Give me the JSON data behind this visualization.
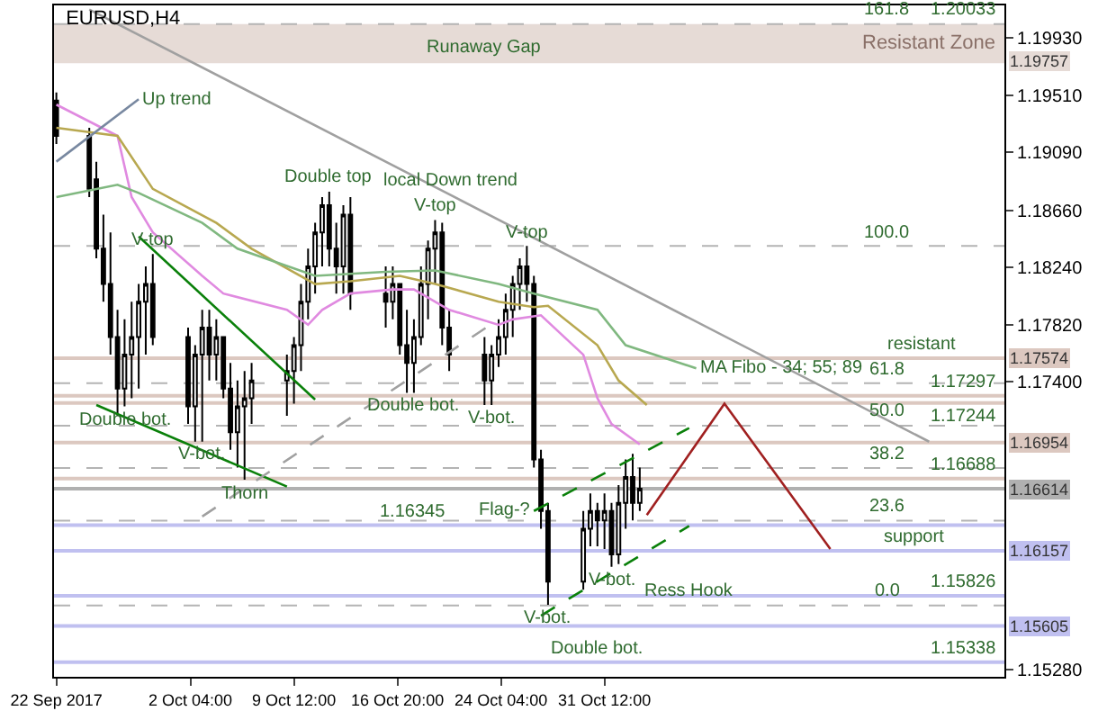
{
  "chart_data": {
    "type": "candlestick",
    "title": "EURUSD,H4",
    "color": "#000000",
    "x": [
      "2017-09-22T16:00",
      "2017-09-25T00:00",
      "2017-09-25T12:00",
      "2017-09-26T00:00",
      "2017-09-26T12:00",
      "2017-09-27T00:00",
      "2017-09-27T12:00",
      "2017-09-28T00:00",
      "2017-09-28T12:00",
      "2017-09-29T00:00",
      "2017-09-29T12:00",
      "2017-10-02T00:00",
      "2017-10-02T12:00",
      "2017-10-03T00:00",
      "2017-10-03T12:00",
      "2017-10-04T00:00",
      "2017-10-04T12:00",
      "2017-10-05T00:00",
      "2017-10-05T12:00",
      "2017-10-06T00:00",
      "2017-10-06T12:00",
      "2017-10-09T00:00",
      "2017-10-09T12:00",
      "2017-10-10T00:00",
      "2017-10-10T12:00",
      "2017-10-11T00:00",
      "2017-10-11T12:00",
      "2017-10-12T00:00",
      "2017-10-12T12:00",
      "2017-10-13T00:00",
      "2017-10-13T12:00",
      "2017-10-16T00:00",
      "2017-10-16T12:00",
      "2017-10-17T00:00",
      "2017-10-17T12:00",
      "2017-10-18T00:00",
      "2017-10-18T12:00",
      "2017-10-19T00:00",
      "2017-10-19T12:00",
      "2017-10-20T00:00",
      "2017-10-20T12:00",
      "2017-10-23T00:00",
      "2017-10-23T12:00",
      "2017-10-24T00:00",
      "2017-10-24T12:00",
      "2017-10-25T00:00",
      "2017-10-25T12:00",
      "2017-10-26T00:00",
      "2017-10-26T12:00",
      "2017-10-27T00:00",
      "2017-10-27T12:00",
      "2017-10-30T00:00",
      "2017-10-30T12:00",
      "2017-10-31T00:00",
      "2017-10-31T12:00",
      "2017-11-01T00:00",
      "2017-11-01T12:00",
      "2017-11-02T00:00",
      "2017-11-02T12:00",
      "2017-11-03T00:00"
    ],
    "ohlc": [
      [
        1.1947,
        1.1953,
        1.1915,
        1.1921
      ],
      [
        1.1921,
        1.1927,
        1.1876,
        1.1882
      ],
      [
        1.1889,
        1.1902,
        1.1831,
        1.1838
      ],
      [
        1.1838,
        1.1863,
        1.1799,
        1.1812
      ],
      [
        1.1812,
        1.185,
        1.176,
        1.1773
      ],
      [
        1.1773,
        1.1793,
        1.1715,
        1.1735
      ],
      [
        1.1735,
        1.1786,
        1.1722,
        1.176
      ],
      [
        1.176,
        1.1799,
        1.1728,
        1.1773
      ],
      [
        1.1773,
        1.1812,
        1.1735,
        1.1799
      ],
      [
        1.1799,
        1.1825,
        1.176,
        1.1812
      ],
      [
        1.1812,
        1.1834,
        1.1767,
        1.1773
      ],
      [
        1.1773,
        1.178,
        1.1709,
        1.1722
      ],
      [
        1.1722,
        1.1767,
        1.1696,
        1.176
      ],
      [
        1.176,
        1.1793,
        1.1696,
        1.178
      ],
      [
        1.178,
        1.1793,
        1.1741,
        1.176
      ],
      [
        1.176,
        1.1786,
        1.1741,
        1.1773
      ],
      [
        1.1773,
        1.1773,
        1.1728,
        1.1735
      ],
      [
        1.1735,
        1.1754,
        1.169,
        1.1703
      ],
      [
        1.1703,
        1.1741,
        1.1677,
        1.1722
      ],
      [
        1.1722,
        1.1748,
        1.1668,
        1.1728
      ],
      [
        1.1728,
        1.1754,
        1.1709,
        1.1741
      ],
      [
        1.1741,
        1.176,
        1.1715,
        1.1748
      ],
      [
        1.1748,
        1.1773,
        1.1724,
        1.1767
      ],
      [
        1.1767,
        1.1812,
        1.1748,
        1.1799
      ],
      [
        1.1799,
        1.1838,
        1.1786,
        1.1825
      ],
      [
        1.1825,
        1.1857,
        1.1805,
        1.185
      ],
      [
        1.185,
        1.1876,
        1.1825,
        1.187
      ],
      [
        1.187,
        1.188,
        1.1825,
        1.1838
      ],
      [
        1.1838,
        1.1857,
        1.1805,
        1.1825
      ],
      [
        1.1825,
        1.187,
        1.1805,
        1.1863
      ],
      [
        1.1863,
        1.1876,
        1.1793,
        1.1805
      ],
      [
        1.1805,
        1.1825,
        1.178,
        1.1799
      ],
      [
        1.1799,
        1.1825,
        1.1786,
        1.1812
      ],
      [
        1.1812,
        1.1812,
        1.176,
        1.1767
      ],
      [
        1.1767,
        1.1793,
        1.1732,
        1.1754
      ],
      [
        1.1754,
        1.1786,
        1.1732,
        1.1773
      ],
      [
        1.1773,
        1.1825,
        1.1767,
        1.1812
      ],
      [
        1.1812,
        1.1844,
        1.1786,
        1.1838
      ],
      [
        1.1838,
        1.1859,
        1.1812,
        1.185
      ],
      [
        1.185,
        1.1857,
        1.1767,
        1.178
      ],
      [
        1.178,
        1.1793,
        1.1748,
        1.176
      ],
      [
        1.176,
        1.1773,
        1.1723,
        1.1741
      ],
      [
        1.1741,
        1.1767,
        1.1723,
        1.176
      ],
      [
        1.176,
        1.1786,
        1.1751,
        1.1773
      ],
      [
        1.1773,
        1.1805,
        1.176,
        1.1793
      ],
      [
        1.1793,
        1.1818,
        1.1773,
        1.1812
      ],
      [
        1.1812,
        1.1831,
        1.1793,
        1.1825
      ],
      [
        1.1825,
        1.184,
        1.1799,
        1.1812
      ],
      [
        1.1812,
        1.1818,
        1.1677,
        1.1683
      ],
      [
        1.1683,
        1.169,
        1.1632,
        1.1645
      ],
      [
        1.1645,
        1.1651,
        1.1576,
        1.1593
      ],
      [
        1.1593,
        1.1645,
        1.1587,
        1.1632
      ],
      [
        1.1632,
        1.1658,
        1.1619,
        1.1645
      ],
      [
        1.1645,
        1.1651,
        1.1619,
        1.1638
      ],
      [
        1.1638,
        1.1658,
        1.1617,
        1.1645
      ],
      [
        1.1645,
        1.1651,
        1.1604,
        1.1613
      ],
      [
        1.1613,
        1.1664,
        1.1606,
        1.1651
      ],
      [
        1.1651,
        1.1683,
        1.1632,
        1.167
      ],
      [
        1.167,
        1.1687,
        1.1638,
        1.1651
      ],
      [
        1.1651,
        1.1677,
        1.1645,
        1.16614
      ]
    ],
    "series": [
      {
        "type": "line",
        "color": "#e08ae0",
        "x": [
          "2017-09-22T16:00",
          "2017-09-27T00:00",
          "2017-09-28T00:00",
          "2017-09-29T12:00",
          "2017-10-03T00:00",
          "2017-10-04T12:00",
          "2017-10-09T00:00",
          "2017-10-10T12:00",
          "2017-10-11T12:00",
          "2017-10-13T12:00",
          "2017-10-16T12:00",
          "2017-10-18T00:00",
          "2017-10-20T12:00",
          "2017-10-24T00:00",
          "2017-10-25T00:00",
          "2017-10-27T00:00",
          "2017-10-30T00:00",
          "2017-10-31T00:00",
          "2017-11-01T00:00",
          "2017-11-03T00:00"
        ],
        "values": [
          1.1944,
          1.1921,
          1.1876,
          1.185,
          1.1818,
          1.1805,
          1.1793,
          1.1782,
          1.1793,
          1.1805,
          1.1808,
          1.1808,
          1.1793,
          1.1782,
          1.1786,
          1.1789,
          1.176,
          1.1728,
          1.1709,
          1.1694
        ]
      },
      {
        "type": "line",
        "color": "#b8a850",
        "x": [
          "2017-09-22T16:00",
          "2017-09-27T00:00",
          "2017-09-29T12:00",
          "2017-10-04T00:00",
          "2017-10-06T12:00",
          "2017-10-11T00:00",
          "2017-10-13T12:00",
          "2017-10-17T00:00",
          "2017-10-19T12:00",
          "2017-10-24T00:00",
          "2017-10-26T12:00",
          "2017-10-27T12:00",
          "2017-10-31T00:00",
          "2017-11-01T12:00",
          "2017-11-03T12:00"
        ],
        "values": [
          1.1927,
          1.1921,
          1.1882,
          1.1857,
          1.1838,
          1.1812,
          1.1814,
          1.1818,
          1.1812,
          1.1799,
          1.1795,
          1.1796,
          1.1767,
          1.1741,
          1.1723
        ]
      },
      {
        "type": "line",
        "color": "#80b880",
        "x": [
          "2017-09-22T16:00",
          "2017-09-27T00:00",
          "2017-09-28T12:00",
          "2017-10-03T00:00",
          "2017-10-05T12:00",
          "2017-10-11T00:00",
          "2017-10-16T00:00",
          "2017-10-19T12:00",
          "2017-10-24T00:00",
          "2017-10-26T12:00",
          "2017-10-31T00:00",
          "2017-11-02T00:00",
          "2017-11-07T00:00"
        ],
        "values": [
          1.1876,
          1.1885,
          1.1879,
          1.1857,
          1.1838,
          1.1818,
          1.1821,
          1.1822,
          1.1812,
          1.1805,
          1.1793,
          1.1767,
          1.175
        ]
      },
      {
        "type": "line",
        "color": "#a0a0a0",
        "x": [
          "2017-09-25T00:00",
          "2017-10-20T12:00",
          "2017-11-23T12:00"
        ],
        "values": [
          1.2014,
          1.1878,
          1.1696
        ]
      },
      {
        "type": "line",
        "color": "#7888a0",
        "x": [
          "2017-09-22T16:00",
          "2017-09-28T12:00"
        ],
        "values": [
          1.1902,
          1.1948
        ]
      },
      {
        "type": "line",
        "color": "#0a800a",
        "x": [
          "2017-09-28T12:00",
          "2017-10-11T00:00"
        ],
        "values": [
          1.1847,
          1.1727
        ]
      },
      {
        "type": "line",
        "color": "#0a800a",
        "x": [
          "2017-09-25T12:00",
          "2017-10-09T00:00"
        ],
        "values": [
          1.1723,
          1.1663
        ]
      },
      {
        "type": "line",
        "color": "#a02020",
        "x": [
          "2017-11-03T12:00",
          "2017-11-09T00:00",
          "2017-11-16T12:00"
        ],
        "values": [
          1.1642,
          1.1724,
          1.1617
        ]
      },
      {
        "type": "line",
        "color": "#0a800a",
        "line_style": "dashed",
        "x": [
          "2017-10-26T12:00",
          "2017-11-06T12:00"
        ],
        "values": [
          1.1645,
          1.1706
        ]
      },
      {
        "type": "line",
        "color": "#0a800a",
        "line_style": "dashed",
        "x": [
          "2017-10-27T00:00",
          "2017-11-06T12:00"
        ],
        "values": [
          1.1568,
          1.1634
        ]
      },
      {
        "type": "line",
        "color": "#a0a0a0",
        "line_style": "dashed",
        "x": [
          "2017-10-03T00:00",
          "2017-10-24T00:00"
        ],
        "values": [
          1.1641,
          1.1786
        ]
      }
    ],
    "xlim": [
      "2017-09-22T12:00",
      "2017-11-28T20:00"
    ],
    "ylim": [
      1.1523,
      1.2017
    ],
    "xticks": [
      {
        "value": "2017-09-22T16:00",
        "label": "22 Sep 2017"
      },
      {
        "value": "2017-10-02T04:00",
        "label": "2 Oct 04:00"
      },
      {
        "value": "2017-10-09T12:00",
        "label": "9 Oct 12:00"
      },
      {
        "value": "2017-10-16T20:00",
        "label": "16 Oct 20:00"
      },
      {
        "value": "2017-10-24T04:00",
        "label": "24 Oct 04:00"
      },
      {
        "value": "2017-10-31T12:00",
        "label": "31 Oct 12:00"
      }
    ],
    "yticks": [
      {
        "value": 1.1993,
        "label": "1.19930"
      },
      {
        "value": 1.1951,
        "label": "1.19510"
      },
      {
        "value": 1.1909,
        "label": "1.19090"
      },
      {
        "value": 1.1866,
        "label": "1.18660"
      },
      {
        "value": 1.1824,
        "label": "1.18240"
      },
      {
        "value": 1.1782,
        "label": "1.17820"
      },
      {
        "value": 1.174,
        "label": "1.17400"
      },
      {
        "value": 1.1528,
        "label": "1.15280"
      }
    ],
    "bands": [
      {
        "axis": "y",
        "from": 1.19757,
        "to": 1.20033,
        "label": "Resistant Zone",
        "color": "#e6dbd6"
      }
    ],
    "ref_lines": [
      {
        "axis": "y",
        "value": 1.20033,
        "color": "#b4b4b4",
        "line_style": "dashed"
      },
      {
        "axis": "y",
        "value": 1.19757,
        "label": "1.19757",
        "color": "#e6dbd6"
      },
      {
        "axis": "y",
        "value": 1.18401,
        "color": "#b4b4b4",
        "line_style": "dashed"
      },
      {
        "axis": "y",
        "value": 1.1739,
        "color": "#b4b4b4",
        "line_style": "dashed"
      },
      {
        "axis": "y",
        "value": 1.17078,
        "color": "#b4b4b4",
        "line_style": "dashed"
      },
      {
        "axis": "y",
        "value": 1.16766,
        "color": "#b4b4b4",
        "line_style": "dashed"
      },
      {
        "axis": "y",
        "value": 1.16379,
        "color": "#b4b4b4",
        "line_style": "dashed"
      },
      {
        "axis": "y",
        "value": 1.15755,
        "color": "#b4b4b4",
        "line_style": "dashed"
      },
      {
        "axis": "y",
        "value": 1.17574,
        "label": "1.17574",
        "color": "#dcc8c0"
      },
      {
        "axis": "y",
        "value": 1.17297,
        "color": "#dcc8c0"
      },
      {
        "axis": "y",
        "value": 1.17244,
        "color": "#dcc8c0"
      },
      {
        "axis": "y",
        "value": 1.16954,
        "label": "1.16954",
        "color": "#dcc8c0"
      },
      {
        "axis": "y",
        "value": 1.16688,
        "color": "#dcc8c0"
      },
      {
        "axis": "y",
        "value": 1.16614,
        "label": "1.16614",
        "color": "#b0b0b0"
      },
      {
        "axis": "y",
        "value": 1.16345,
        "color": "#c0c0f0"
      },
      {
        "axis": "y",
        "value": 1.16157,
        "label": "1.16157",
        "color": "#c0c0f0"
      },
      {
        "axis": "y",
        "value": 1.15826,
        "color": "#c0c0f0"
      },
      {
        "axis": "y",
        "value": 1.15605,
        "label": "1.15605",
        "color": "#c0c0f0"
      },
      {
        "axis": "y",
        "value": 1.15338,
        "color": "#c0c0f0"
      }
    ],
    "annotations": [
      {
        "text": "Runaway Gap",
        "x": "2017-10-23T00:00",
        "y": 1.19757
      },
      {
        "text": "Up trend",
        "x": "2017-09-28T12:00",
        "y": 1.1948
      },
      {
        "text": "Double top",
        "x": "2017-10-12T00:00",
        "y": 1.188
      },
      {
        "text": "local Down trend",
        "x": "2017-10-20T12:00",
        "y": 1.1878
      },
      {
        "text": "V-top",
        "x": "2017-09-29T12:00",
        "y": 1.1834
      },
      {
        "text": "V-top",
        "x": "2017-10-19T12:00",
        "y": 1.1859
      },
      {
        "text": "V-top",
        "x": "2017-10-26T00:00",
        "y": 1.184
      },
      {
        "text": "Double bot.",
        "x": "2017-09-27T12:00",
        "y": 1.1722
      },
      {
        "text": "V-bot.",
        "x": "2017-10-03T00:00",
        "y": 1.1696
      },
      {
        "text": "Thorn",
        "x": "2017-10-06T00:00",
        "y": 1.1668
      },
      {
        "text": "Double bot.",
        "x": "2017-10-18T00:00",
        "y": 1.1732
      },
      {
        "text": "V-bot.",
        "x": "2017-10-23T12:00",
        "y": 1.1723
      },
      {
        "text": "MA Fibo - 34; 55; 89",
        "x": "2017-11-07T00:00",
        "y": 1.175
      },
      {
        "text": "resistant",
        "x": "2017-11-23T00:00",
        "y": 1.17574
      },
      {
        "text": "support",
        "x": "2017-11-22T12:00",
        "y": 1.16157
      },
      {
        "text": "Flag-?",
        "x": "2017-10-26T12:00",
        "y": 1.1645
      },
      {
        "text": "V-bot.",
        "x": "2017-11-01T00:00",
        "y": 1.1604
      },
      {
        "text": "V-bot.",
        "x": "2017-10-27T12:00",
        "y": 1.1576
      },
      {
        "text": "Ress Hook",
        "x": "2017-11-06T12:00",
        "y": 1.15755
      },
      {
        "text": "Double bot.",
        "x": "2017-10-31T00:00",
        "y": 1.15338
      },
      {
        "text": "161.8",
        "x": "2017-11-20T12:00",
        "y": 1.20033
      },
      {
        "text": "100.0",
        "x": "2017-11-20T12:00",
        "y": 1.18401
      },
      {
        "text": "61.8",
        "x": "2017-11-20T12:00",
        "y": 1.1739
      },
      {
        "text": "50.0",
        "x": "2017-11-20T12:00",
        "y": 1.17078
      },
      {
        "text": "38.2",
        "x": "2017-11-20T12:00",
        "y": 1.16766
      },
      {
        "text": "23.6",
        "x": "2017-11-20T12:00",
        "y": 1.16379
      },
      {
        "text": "0.0",
        "x": "2017-11-20T12:00",
        "y": 1.15755
      },
      {
        "text": "1.20033",
        "x": "2017-11-26T00:00",
        "y": 1.20033
      },
      {
        "text": "1.17297",
        "x": "2017-11-26T00:00",
        "y": 1.17297
      },
      {
        "text": "1.17244",
        "x": "2017-11-26T00:00",
        "y": 1.17244
      },
      {
        "text": "1.16688",
        "x": "2017-11-26T00:00",
        "y": 1.16688
      },
      {
        "text": "1.16345",
        "x": "2017-10-18T00:00",
        "y": 1.16345
      },
      {
        "text": "1.15826",
        "x": "2017-11-26T00:00",
        "y": 1.15826
      },
      {
        "text": "1.15338",
        "x": "2017-11-26T00:00",
        "y": 1.15338
      }
    ],
    "grid": false
  }
}
